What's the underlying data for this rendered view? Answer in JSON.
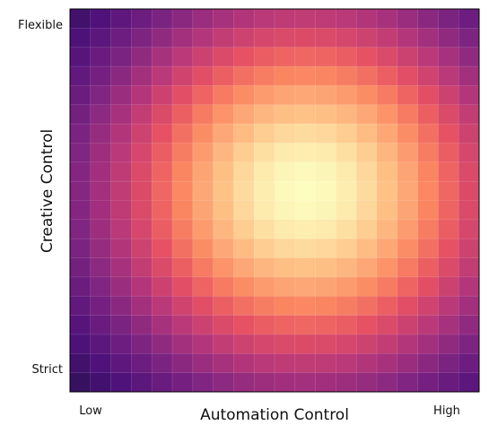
{
  "chart_data": {
    "type": "heatmap",
    "title": "",
    "xlabel": "Automation Control",
    "ylabel": "Creative Control",
    "x_range_labels": [
      "Low",
      "High"
    ],
    "y_range_labels": [
      "Strict",
      "Flexible"
    ],
    "grid": true,
    "colormap": "magma",
    "rows": 20,
    "cols": 20,
    "peak": {
      "col": 11,
      "row": 9
    },
    "spread": 6.8,
    "value_range": [
      0,
      1
    ]
  }
}
